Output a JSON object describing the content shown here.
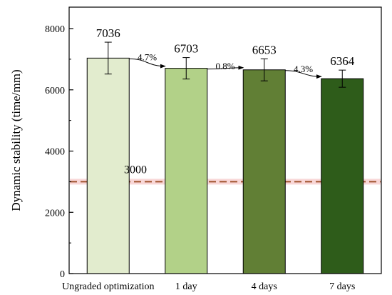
{
  "chart_data": {
    "type": "bar",
    "categories": [
      "Ungraded optimization",
      "1 day",
      "4 days",
      "7 days"
    ],
    "values": [
      7036,
      6703,
      6653,
      6364
    ],
    "errors": [
      520,
      350,
      360,
      280
    ],
    "bar_labels": [
      "7036",
      "6703",
      "6653",
      "6364"
    ],
    "bar_colors": [
      "#e2ecce",
      "#b2d188",
      "#617f35",
      "#2e5c1a"
    ],
    "change_labels": [
      "4.7%",
      "0.8%",
      "4.3%"
    ],
    "ylabel": "Dynamic stability (time/mm)",
    "ylim": [
      0,
      8700
    ],
    "yticks": [
      0,
      2000,
      4000,
      6000,
      8000
    ],
    "reference_line": {
      "value": 3000,
      "label": "3000",
      "color": "#a0522d",
      "band_color": "#f8d7d7"
    }
  }
}
